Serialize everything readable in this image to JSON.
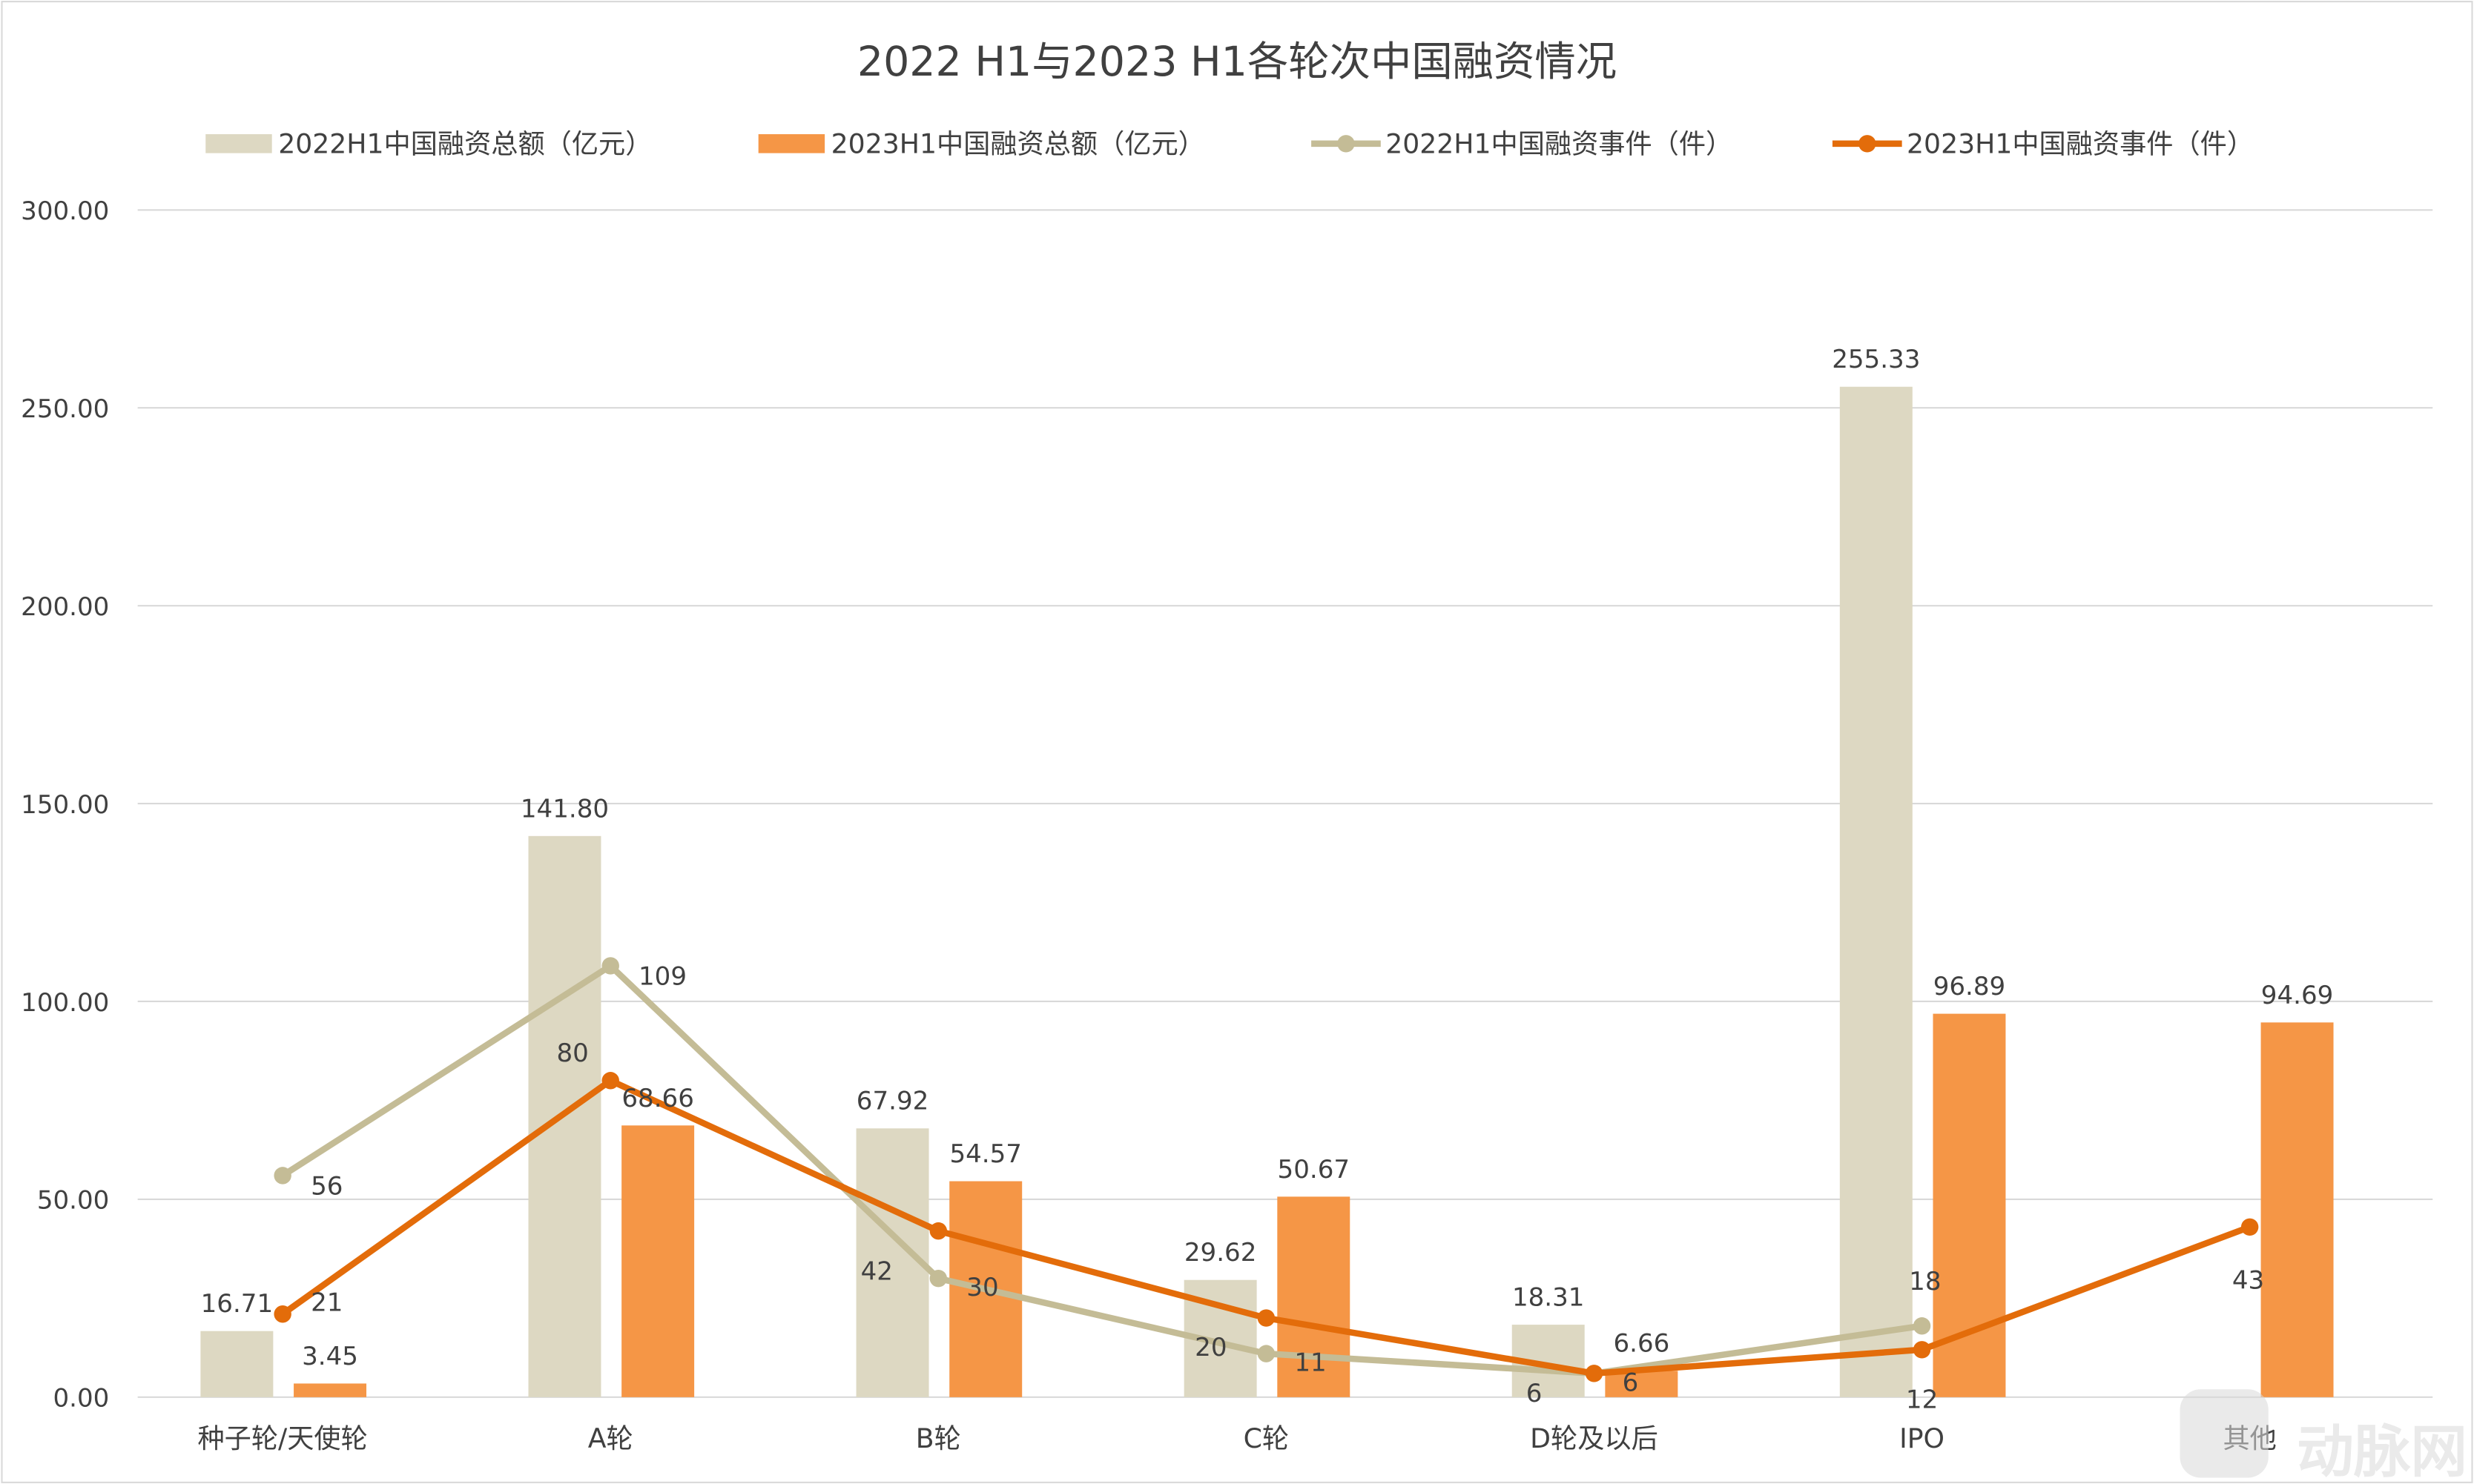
{
  "chart_data": {
    "type": "bar",
    "title": "2022 H1与2023 H1各轮次中国融资情况",
    "categories": [
      "种子轮/天使轮",
      "A轮",
      "B轮",
      "C轮",
      "D轮及以后",
      "IPO",
      "其他"
    ],
    "ylim": [
      0,
      300
    ],
    "yticks": [
      "0.00",
      "50.00",
      "100.00",
      "150.00",
      "200.00",
      "250.00",
      "300.00"
    ],
    "grid": true,
    "legend_position": "top",
    "series": [
      {
        "name": "2022H1中国融资总额（亿元）",
        "kind": "bar",
        "color": "#DDD8C2",
        "values": [
          16.71,
          141.8,
          67.92,
          29.62,
          18.31,
          255.33,
          null
        ],
        "labels": [
          "16.71",
          "141.80",
          "67.92",
          "29.62",
          "18.31",
          "255.33",
          null
        ]
      },
      {
        "name": "2023H1中国融资总额（亿元）",
        "kind": "bar",
        "color": "#F59646",
        "values": [
          3.45,
          68.66,
          54.57,
          50.67,
          6.66,
          96.89,
          94.69
        ],
        "labels": [
          "3.45",
          "68.66",
          "54.57",
          "50.67",
          "6.66",
          "96.89",
          "94.69"
        ]
      },
      {
        "name": "2022H1中国融资事件（件）",
        "kind": "line",
        "color": "#C4BC96",
        "values": [
          56,
          109,
          30,
          11,
          6,
          18,
          null
        ],
        "labels": [
          "56",
          "109",
          "30",
          "11",
          "6",
          "18",
          null
        ]
      },
      {
        "name": "2023H1中国融资事件（件）",
        "kind": "line",
        "color": "#E36C0A",
        "values": [
          21,
          80,
          42,
          20,
          6,
          12,
          43
        ],
        "labels": [
          "21",
          "80",
          "42",
          "20",
          "6",
          "12",
          "43"
        ]
      }
    ]
  },
  "watermark": "动脉网"
}
